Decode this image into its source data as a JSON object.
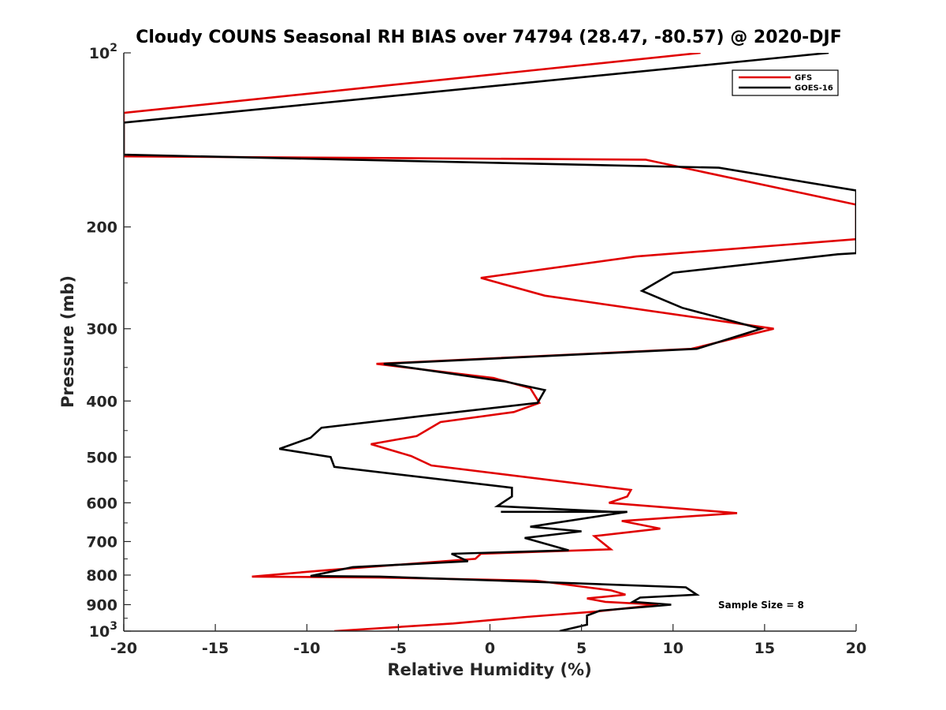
{
  "chart_data": {
    "type": "line",
    "title": "Cloudy COUNS Seasonal RH BIAS over 74794 (28.47, -80.57) @ 2020-DJF",
    "xlabel": "Relative Humidity (%)",
    "ylabel": "Pressure (mb)",
    "xlim": [
      -20,
      20
    ],
    "ylim": [
      100,
      1000
    ],
    "yscale": "log",
    "y_reversed": true,
    "grid": false,
    "legend_position": "top-right",
    "xticks": [
      -20,
      -15,
      -10,
      -5,
      0,
      5,
      10,
      15,
      20
    ],
    "xtick_labels": [
      "-20",
      "-15",
      "-10",
      "-5",
      "0",
      "5",
      "10",
      "15",
      "20"
    ],
    "yticks": [
      {
        "value": 100,
        "base": "10",
        "exp": "2"
      },
      {
        "value": 200,
        "label": "200"
      },
      {
        "value": 300,
        "label": "300"
      },
      {
        "value": 400,
        "label": "400"
      },
      {
        "value": 500,
        "label": "500"
      },
      {
        "value": 600,
        "label": "600"
      },
      {
        "value": 700,
        "label": "700"
      },
      {
        "value": 800,
        "label": "800"
      },
      {
        "value": 900,
        "label": "900"
      },
      {
        "value": 1000,
        "base": "10",
        "exp": "3"
      }
    ],
    "annotation": "Sample Size = 8",
    "series": [
      {
        "name": "GFS",
        "color": "#e00000",
        "points": [
          [
            11.5,
            100
          ],
          [
            -20,
            127
          ],
          [
            -20,
            151
          ],
          [
            8.5,
            153
          ],
          [
            20,
            183
          ],
          [
            20,
            210
          ],
          [
            8,
            225
          ],
          [
            -0.5,
            245
          ],
          [
            3,
            263
          ],
          [
            15.5,
            300
          ],
          [
            11,
            325
          ],
          [
            -6.2,
            345
          ],
          [
            0.2,
            365
          ],
          [
            2.2,
            380
          ],
          [
            2.7,
            403
          ],
          [
            1.3,
            418
          ],
          [
            -2.7,
            435
          ],
          [
            -4,
            460
          ],
          [
            -6.5,
            475
          ],
          [
            -4.3,
            498
          ],
          [
            -3.2,
            517
          ],
          [
            7.7,
            570
          ],
          [
            7.5,
            585
          ],
          [
            6.5,
            600
          ],
          [
            13.5,
            625
          ],
          [
            7.2,
            645
          ],
          [
            9.3,
            665
          ],
          [
            5.7,
            685
          ],
          [
            6.6,
            722
          ],
          [
            -0.5,
            735
          ],
          [
            -0.8,
            750
          ],
          [
            -9,
            785
          ],
          [
            -13,
            805
          ],
          [
            -6,
            808
          ],
          [
            2.5,
            818
          ],
          [
            6.6,
            850
          ],
          [
            7.4,
            865
          ],
          [
            5.3,
            878
          ],
          [
            6.3,
            890
          ],
          [
            9.2,
            900
          ],
          [
            5.8,
            925
          ],
          [
            2,
            945
          ],
          [
            -2,
            970
          ],
          [
            -8.5,
            1000
          ]
        ]
      },
      {
        "name": "GOES-16",
        "color": "#000000",
        "points": [
          [
            18.5,
            100
          ],
          [
            -20,
            132
          ],
          [
            -20,
            150
          ],
          [
            12.5,
            158
          ],
          [
            20,
            173
          ],
          [
            20,
            222
          ],
          [
            19,
            223
          ],
          [
            10,
            240
          ],
          [
            8.3,
            258
          ],
          [
            10.5,
            276
          ],
          [
            14.8,
            300
          ],
          [
            11.3,
            325
          ],
          [
            -5.8,
            345
          ],
          [
            0.8,
            370
          ],
          [
            3,
            383
          ],
          [
            2.6,
            403
          ],
          [
            -3.8,
            425
          ],
          [
            -9.2,
            445
          ],
          [
            -9.8,
            463
          ],
          [
            -11.5,
            484
          ],
          [
            -8.7,
            500
          ],
          [
            -8.5,
            520
          ],
          [
            1.2,
            565
          ],
          [
            1.2,
            585
          ],
          [
            0.4,
            608
          ],
          [
            6.7,
            622
          ],
          [
            0.6,
            622
          ],
          [
            7.5,
            622
          ],
          [
            2.2,
            660
          ],
          [
            5,
            672
          ],
          [
            1.9,
            690
          ],
          [
            4.3,
            725
          ],
          [
            -2.1,
            735
          ],
          [
            -1.2,
            757
          ],
          [
            -7.5,
            775
          ],
          [
            -9.8,
            803
          ],
          [
            -6,
            805
          ],
          [
            4,
            825
          ],
          [
            10.7,
            840
          ],
          [
            11.3,
            865
          ],
          [
            8.2,
            875
          ],
          [
            7.8,
            890
          ],
          [
            9.9,
            900
          ],
          [
            6,
            922
          ],
          [
            5.3,
            940
          ],
          [
            5.3,
            975
          ],
          [
            3.8,
            1000
          ]
        ]
      }
    ]
  }
}
